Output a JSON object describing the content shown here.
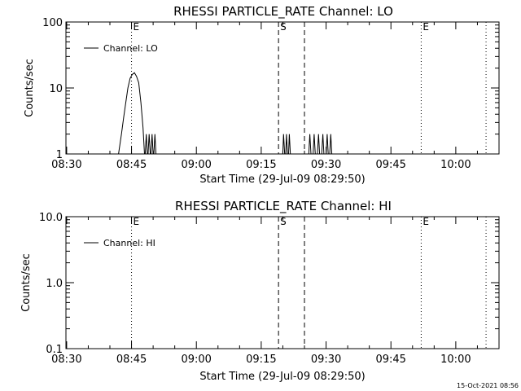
{
  "footer": {
    "timestamp": "15-Oct-2021 08:56"
  },
  "chart_data": [
    {
      "type": "line",
      "title": "RHESSI PARTICLE_RATE Channel: LO",
      "xlabel": "Start Time (29-Jul-09 08:29:50)",
      "ylabel": "Counts/sec",
      "y_scale": "log",
      "ylim": [
        1,
        100
      ],
      "y_ticks": [
        {
          "value": 1,
          "label": "1"
        },
        {
          "value": 10,
          "label": "10"
        },
        {
          "value": 100,
          "label": "100"
        }
      ],
      "xlim": [
        "08:29:50",
        "10:10:00"
      ],
      "x_ticks": [
        "08:30",
        "08:45",
        "09:00",
        "09:15",
        "09:30",
        "09:45",
        "10:00"
      ],
      "legend": {
        "position": "top-left",
        "entries": [
          "Channel: LO"
        ]
      },
      "markers": [
        {
          "time": "08:45:00",
          "style": "dotted",
          "label": "E"
        },
        {
          "time": "09:19:00",
          "style": "dashed",
          "label": "S"
        },
        {
          "time": "09:25:00",
          "style": "dashed",
          "label": ""
        },
        {
          "time": "09:52:00",
          "style": "dotted",
          "label": "E"
        },
        {
          "time": "10:07:00",
          "style": "dotted",
          "label": ""
        }
      ],
      "series": [
        {
          "name": "Channel: LO",
          "x": [
            "08:42:00",
            "08:42:40",
            "08:43:10",
            "08:43:40",
            "08:44:10",
            "08:44:40",
            "08:45:10",
            "08:45:40",
            "08:46:10",
            "08:46:40",
            "08:47:10",
            "08:47:40",
            "08:48:00",
            "08:48:10",
            "08:48:25",
            "08:48:40",
            "08:48:50",
            "08:49:05",
            "08:49:20",
            "08:49:30",
            "08:49:45",
            "08:50:00",
            "08:50:10",
            "08:50:25",
            "08:50:40",
            "09:20:00",
            "09:20:10",
            "09:20:25",
            "09:20:40",
            "09:20:50",
            "09:21:05",
            "09:21:20",
            "09:21:30",
            "09:21:45",
            "09:26:00",
            "09:26:15",
            "09:26:30",
            "09:27:00",
            "09:27:15",
            "09:27:30",
            "09:28:00",
            "09:28:15",
            "09:28:30",
            "09:29:00",
            "09:29:15",
            "09:29:30",
            "09:30:00",
            "09:30:15",
            "09:30:30",
            "09:30:50",
            "09:31:05",
            "09:31:20"
          ],
          "values": [
            1,
            2,
            3.5,
            6,
            10,
            14,
            16,
            17,
            15,
            12,
            6,
            2.5,
            1,
            1,
            2,
            1,
            1,
            2,
            1,
            1,
            2,
            1,
            1,
            2,
            1,
            1,
            2,
            1,
            1,
            2,
            1,
            1,
            2,
            1,
            1,
            2,
            1,
            1,
            2,
            1,
            1,
            2,
            1,
            1,
            2,
            1,
            1,
            2,
            1,
            1,
            2,
            1
          ]
        }
      ]
    },
    {
      "type": "line",
      "title": "RHESSI PARTICLE_RATE Channel: HI",
      "xlabel": "Start Time (29-Jul-09 08:29:50)",
      "ylabel": "Counts/sec",
      "y_scale": "log",
      "ylim": [
        0.1,
        10
      ],
      "y_ticks": [
        {
          "value": 0.1,
          "label": "0.1"
        },
        {
          "value": 1,
          "label": "1.0"
        },
        {
          "value": 10,
          "label": "10.0"
        }
      ],
      "xlim": [
        "08:29:50",
        "10:10:00"
      ],
      "x_ticks": [
        "08:30",
        "08:45",
        "09:00",
        "09:15",
        "09:30",
        "09:45",
        "10:00"
      ],
      "legend": {
        "position": "top-left",
        "entries": [
          "Channel: HI"
        ]
      },
      "markers": [
        {
          "time": "08:45:00",
          "style": "dotted",
          "label": "E"
        },
        {
          "time": "09:19:00",
          "style": "dashed",
          "label": "S"
        },
        {
          "time": "09:25:00",
          "style": "dashed",
          "label": ""
        },
        {
          "time": "09:52:00",
          "style": "dotted",
          "label": "E"
        },
        {
          "time": "10:07:00",
          "style": "dotted",
          "label": ""
        }
      ],
      "series": [
        {
          "name": "Channel: HI",
          "x": [],
          "values": []
        }
      ]
    }
  ]
}
